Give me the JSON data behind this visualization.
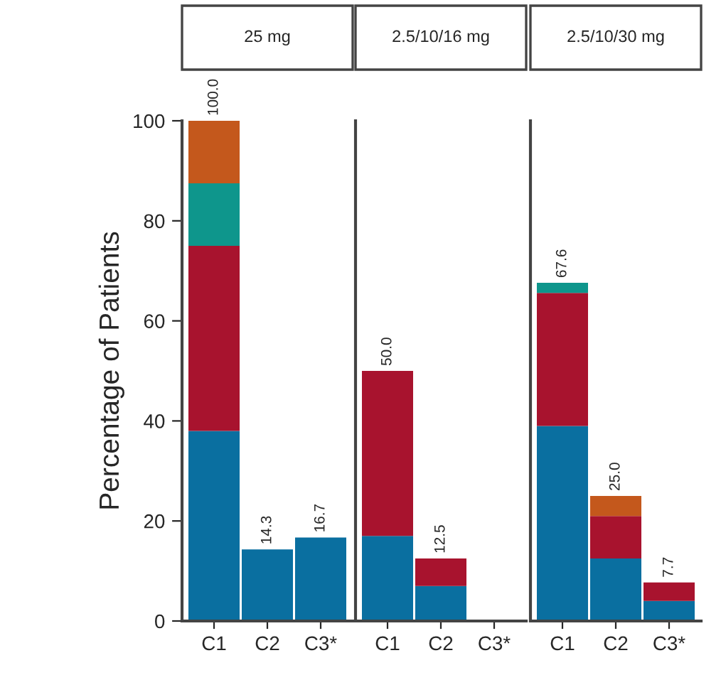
{
  "chart_data": [
    {
      "type": "bar",
      "title": "25 mg",
      "ylabel": "Percentage of Patients",
      "categories": [
        "C1",
        "C2",
        "C3*"
      ],
      "stacked": true,
      "ylim": [
        0,
        100
      ],
      "yticks": [
        0,
        20,
        40,
        60,
        80,
        100
      ],
      "series": [
        {
          "color": "#0a6fa0",
          "values": [
            38,
            14.3,
            16.7
          ]
        },
        {
          "color": "#a8132e",
          "values": [
            37,
            null,
            null
          ]
        },
        {
          "color": "#0e968c",
          "values": [
            12.5,
            null,
            null
          ]
        },
        {
          "color": "#c4581c",
          "values": [
            12.5,
            null,
            null
          ]
        }
      ],
      "totals": [
        "100.0",
        "14.3",
        "16.7"
      ]
    },
    {
      "type": "bar",
      "title": "2.5/10/16 mg",
      "categories": [
        "C1",
        "C2",
        "C3*"
      ],
      "stacked": true,
      "ylim": [
        0,
        100
      ],
      "yticks": [
        0,
        20,
        40,
        60,
        80,
        100
      ],
      "tick_labels": "x",
      "series": [
        {
          "color": "#0a6fa0",
          "values": [
            17,
            7,
            null
          ]
        },
        {
          "color": "#a8132e",
          "values": [
            33,
            5.5,
            null
          ]
        }
      ],
      "totals": [
        "50.0",
        "12.5",
        null
      ]
    },
    {
      "type": "bar",
      "title": "2.5/10/30 mg",
      "categories": [
        "C1",
        "C2",
        "C3*"
      ],
      "stacked": true,
      "ylim": [
        0,
        100
      ],
      "yticks": [
        0,
        20,
        40,
        60,
        80,
        100
      ],
      "tick_labels": "x",
      "series": [
        {
          "color": "#0a6fa0",
          "values": [
            39,
            12.5,
            4
          ]
        },
        {
          "color": "#a8132e",
          "values": [
            26.6,
            8.5,
            3.7
          ]
        },
        {
          "color": "#0e968c",
          "values": [
            2,
            null,
            null
          ]
        },
        {
          "color": "#c4581c",
          "values": [
            null,
            4,
            null
          ]
        }
      ],
      "totals": [
        "67.6",
        "25.0",
        "7.7"
      ]
    }
  ]
}
